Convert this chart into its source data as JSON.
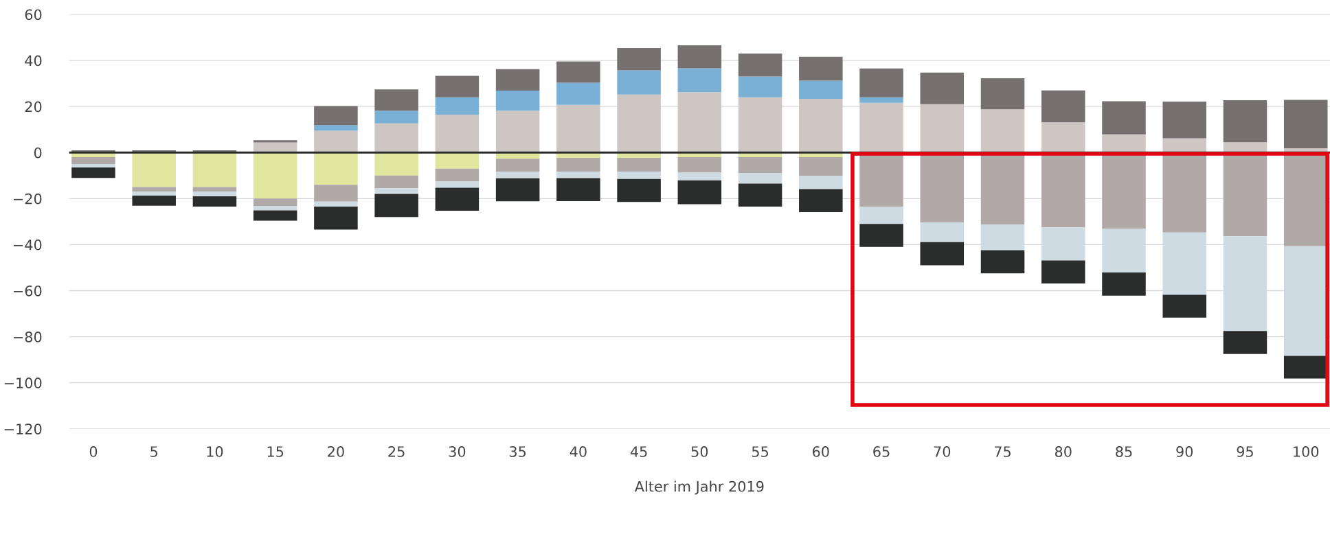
{
  "chart_data": {
    "type": "bar",
    "stacked": true,
    "xlabel": "Alter im Jahr 2019",
    "categories": [
      "0",
      "5",
      "10",
      "15",
      "20",
      "25",
      "30",
      "35",
      "40",
      "45",
      "50",
      "55",
      "60",
      "65",
      "70",
      "75",
      "80",
      "85",
      "90",
      "95",
      "100"
    ],
    "series": [
      {
        "color": "#cdc6c3",
        "values": [
          0,
          0,
          0,
          4.4,
          9.5,
          12.7,
          16.4,
          18.2,
          20.7,
          25.2,
          26.2,
          24,
          23.3,
          21.6,
          21,
          18.8,
          13.1,
          7.9,
          6.2,
          4.5,
          1.9
        ]
      },
      {
        "color": "#7aafd6",
        "values": [
          0,
          0,
          0,
          0,
          2.4,
          5.5,
          7.6,
          8.7,
          9.6,
          10.5,
          10.4,
          9,
          7.9,
          2.4,
          0,
          0,
          0,
          0,
          0,
          0,
          0
        ]
      },
      {
        "color": "#767170",
        "values": [
          1,
          1,
          1,
          1,
          8.3,
          9.2,
          9.3,
          9.3,
          9.3,
          9.7,
          10,
          10,
          10.4,
          12.5,
          13.7,
          13.5,
          13.9,
          14.4,
          15.9,
          18.2,
          21
        ]
      },
      {
        "color": "#e1e69f",
        "values": [
          -2,
          -15,
          -15,
          -20,
          -14,
          -10,
          -7,
          -2.7,
          -2.3,
          -2.3,
          -2,
          -2,
          -2,
          0,
          0,
          0,
          0,
          0,
          0,
          0,
          0
        ]
      },
      {
        "color": "#b0a9a8",
        "values": [
          -3,
          -2,
          -2,
          -3.3,
          -7.3,
          -5.6,
          -5.6,
          -5.7,
          -6,
          -6,
          -6.7,
          -7,
          -8.1,
          -23.6,
          -30.3,
          -31.3,
          -32.5,
          -33.2,
          -34.7,
          -36.4,
          -40.7
        ]
      },
      {
        "color": "#cfdbe2",
        "values": [
          -1.5,
          -1.7,
          -2,
          -1.8,
          -2.2,
          -2.4,
          -2.7,
          -2.8,
          -2.8,
          -3.2,
          -3.4,
          -4.5,
          -5.8,
          -7.4,
          -8.6,
          -11.1,
          -14.4,
          -18.9,
          -27.1,
          -41.1,
          -47.6
        ]
      },
      {
        "color": "#2b2d2d",
        "values": [
          -4.5,
          -4.4,
          -4.5,
          -4.5,
          -10,
          -10,
          -10,
          -10,
          -10,
          -10,
          -10.3,
          -10,
          -10,
          -10,
          -10.1,
          -10.1,
          -10,
          -10.1,
          -9.9,
          -10,
          -9.9
        ]
      }
    ],
    "ylim": [
      -120,
      60
    ],
    "yticks": [
      {
        "value": -120,
        "label": "−120"
      },
      {
        "value": -100,
        "label": "−100"
      },
      {
        "value": -80,
        "label": "−80"
      },
      {
        "value": -60,
        "label": "−60"
      },
      {
        "value": -40,
        "label": "−40"
      },
      {
        "value": -20,
        "label": "−20"
      },
      0,
      20,
      40,
      60
    ],
    "grid": "y",
    "ref_lines": [
      {
        "axis": "y",
        "value": 0,
        "color": "#2b2b2b"
      }
    ]
  }
}
